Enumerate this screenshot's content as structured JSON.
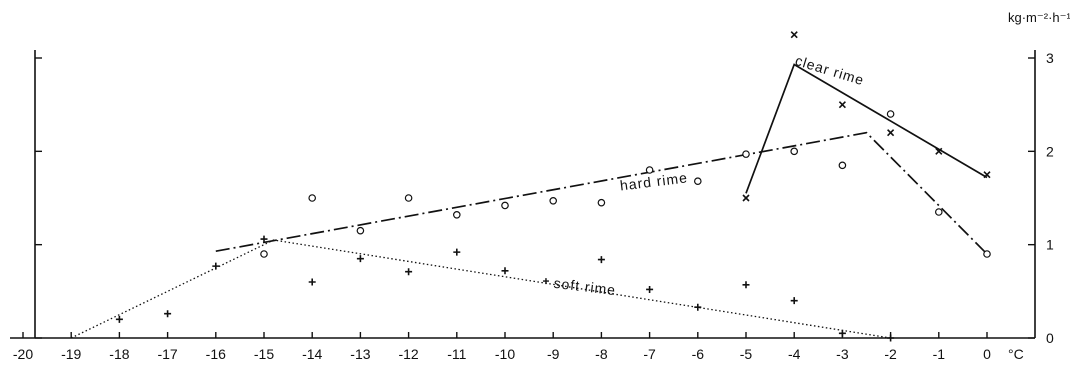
{
  "chart_data": {
    "type": "scatter",
    "title": "",
    "xlabel": "°C",
    "ylabel": "kg·m⁻²·h⁻¹",
    "xlim": [
      -20,
      0.5
    ],
    "ylim": [
      0,
      3
    ],
    "x_ticks": [
      -20,
      -19,
      -18,
      -17,
      -16,
      -15,
      -14,
      -13,
      -12,
      -11,
      -10,
      -9,
      -8,
      -7,
      -6,
      -5,
      -4,
      -3,
      -2,
      -1,
      0
    ],
    "x_tick_labels": [
      "-20",
      "-19",
      "-18",
      "-17",
      "-16",
      "-15",
      "-14",
      "-13",
      "-12",
      "-11",
      "-10",
      "-9",
      "-8",
      "-7",
      "-6",
      "-5",
      "-4",
      "-3",
      "-2",
      "-1",
      "0"
    ],
    "y_ticks": [
      0,
      1,
      2,
      3
    ],
    "y_tick_labels": [
      "0",
      "1",
      "2",
      "3"
    ],
    "grid": false,
    "series": [
      {
        "name": "hard rime",
        "marker": "circle",
        "line_style": "dash-dot",
        "points": [
          {
            "x": -15,
            "y": 0.9
          },
          {
            "x": -14,
            "y": 1.5
          },
          {
            "x": -13,
            "y": 1.15
          },
          {
            "x": -12,
            "y": 1.5
          },
          {
            "x": -11,
            "y": 1.32
          },
          {
            "x": -10,
            "y": 1.42
          },
          {
            "x": -9,
            "y": 1.47
          },
          {
            "x": -8,
            "y": 1.45
          },
          {
            "x": -7,
            "y": 1.8
          },
          {
            "x": -6,
            "y": 1.68
          },
          {
            "x": -5,
            "y": 1.97
          },
          {
            "x": -4,
            "y": 2.0
          },
          {
            "x": -3,
            "y": 1.85
          },
          {
            "x": -2,
            "y": 2.4
          },
          {
            "x": -1,
            "y": 1.35
          },
          {
            "x": 0,
            "y": 0.9
          }
        ],
        "fit_line": [
          {
            "x": -16,
            "y": 0.93
          },
          {
            "x": -2.5,
            "y": 2.2
          },
          {
            "x": 0,
            "y": 0.9
          }
        ]
      },
      {
        "name": "soft rime",
        "marker": "plus",
        "line_style": "dotted",
        "points": [
          {
            "x": -18,
            "y": 0.2
          },
          {
            "x": -17,
            "y": 0.26
          },
          {
            "x": -16,
            "y": 0.77
          },
          {
            "x": -15,
            "y": 1.06
          },
          {
            "x": -14,
            "y": 0.6
          },
          {
            "x": -13,
            "y": 0.85
          },
          {
            "x": -12,
            "y": 0.71
          },
          {
            "x": -11,
            "y": 0.92
          },
          {
            "x": -10,
            "y": 0.72
          },
          {
            "x": -8,
            "y": 0.84
          },
          {
            "x": -7,
            "y": 0.52
          },
          {
            "x": -6,
            "y": 0.33
          },
          {
            "x": -5,
            "y": 0.57
          },
          {
            "x": -4,
            "y": 0.4
          },
          {
            "x": -3,
            "y": 0.05
          },
          {
            "x": -2,
            "y": 0.0
          }
        ],
        "fit_line": [
          {
            "x": -19,
            "y": 0.0
          },
          {
            "x": -14.8,
            "y": 1.05
          },
          {
            "x": -2,
            "y": 0.0
          }
        ]
      },
      {
        "name": "clear rime",
        "marker": "cross",
        "line_style": "solid",
        "points": [
          {
            "x": -5,
            "y": 1.5
          },
          {
            "x": -4,
            "y": 3.25
          },
          {
            "x": -3,
            "y": 2.5
          },
          {
            "x": -2,
            "y": 2.2
          },
          {
            "x": -1,
            "y": 2.0
          },
          {
            "x": 0,
            "y": 1.75
          }
        ],
        "fit_line": [
          {
            "x": -5,
            "y": 1.55
          },
          {
            "x": -4,
            "y": 2.93
          },
          {
            "x": 0,
            "y": 1.72
          }
        ]
      }
    ]
  }
}
